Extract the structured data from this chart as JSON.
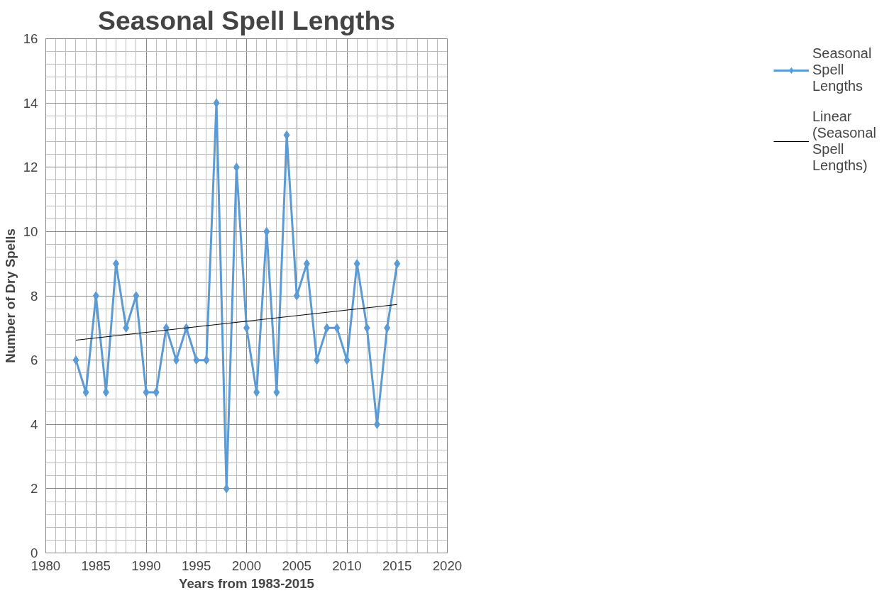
{
  "chart_data": {
    "type": "line",
    "title": "Seasonal Spell Lengths",
    "xlabel": "Years from 1983-2015",
    "ylabel": "Number of Dry Spells",
    "x": [
      1983,
      1984,
      1985,
      1986,
      1987,
      1988,
      1989,
      1990,
      1991,
      1992,
      1993,
      1994,
      1995,
      1996,
      1997,
      1998,
      1999,
      2000,
      2001,
      2002,
      2003,
      2004,
      2005,
      2006,
      2007,
      2008,
      2009,
      2010,
      2011,
      2012,
      2013,
      2014,
      2015
    ],
    "series": [
      {
        "name": "Seasonal Spell Lengths",
        "color": "#5b9bd5",
        "marker": "diamond",
        "values": [
          6,
          5,
          8,
          5,
          9,
          7,
          8,
          5,
          5,
          7,
          6,
          7,
          6,
          6,
          14,
          2,
          12,
          7,
          5,
          10,
          5,
          13,
          8,
          9,
          6,
          7,
          7,
          6,
          9,
          7,
          4,
          7,
          9
        ]
      },
      {
        "name": "Linear (Seasonal Spell Lengths)",
        "color": "#000000",
        "marker": "none",
        "x": [
          1983,
          2015
        ],
        "values": [
          6.62,
          7.73
        ]
      }
    ],
    "xlim": [
      1980,
      2020
    ],
    "xticks": [
      1980,
      1985,
      1990,
      1995,
      2000,
      2005,
      2010,
      2015,
      2020
    ],
    "ylim": [
      0,
      16
    ],
    "yticks": [
      0,
      2,
      4,
      6,
      8,
      10,
      12,
      14,
      16
    ],
    "grid": true,
    "legend": "right"
  }
}
